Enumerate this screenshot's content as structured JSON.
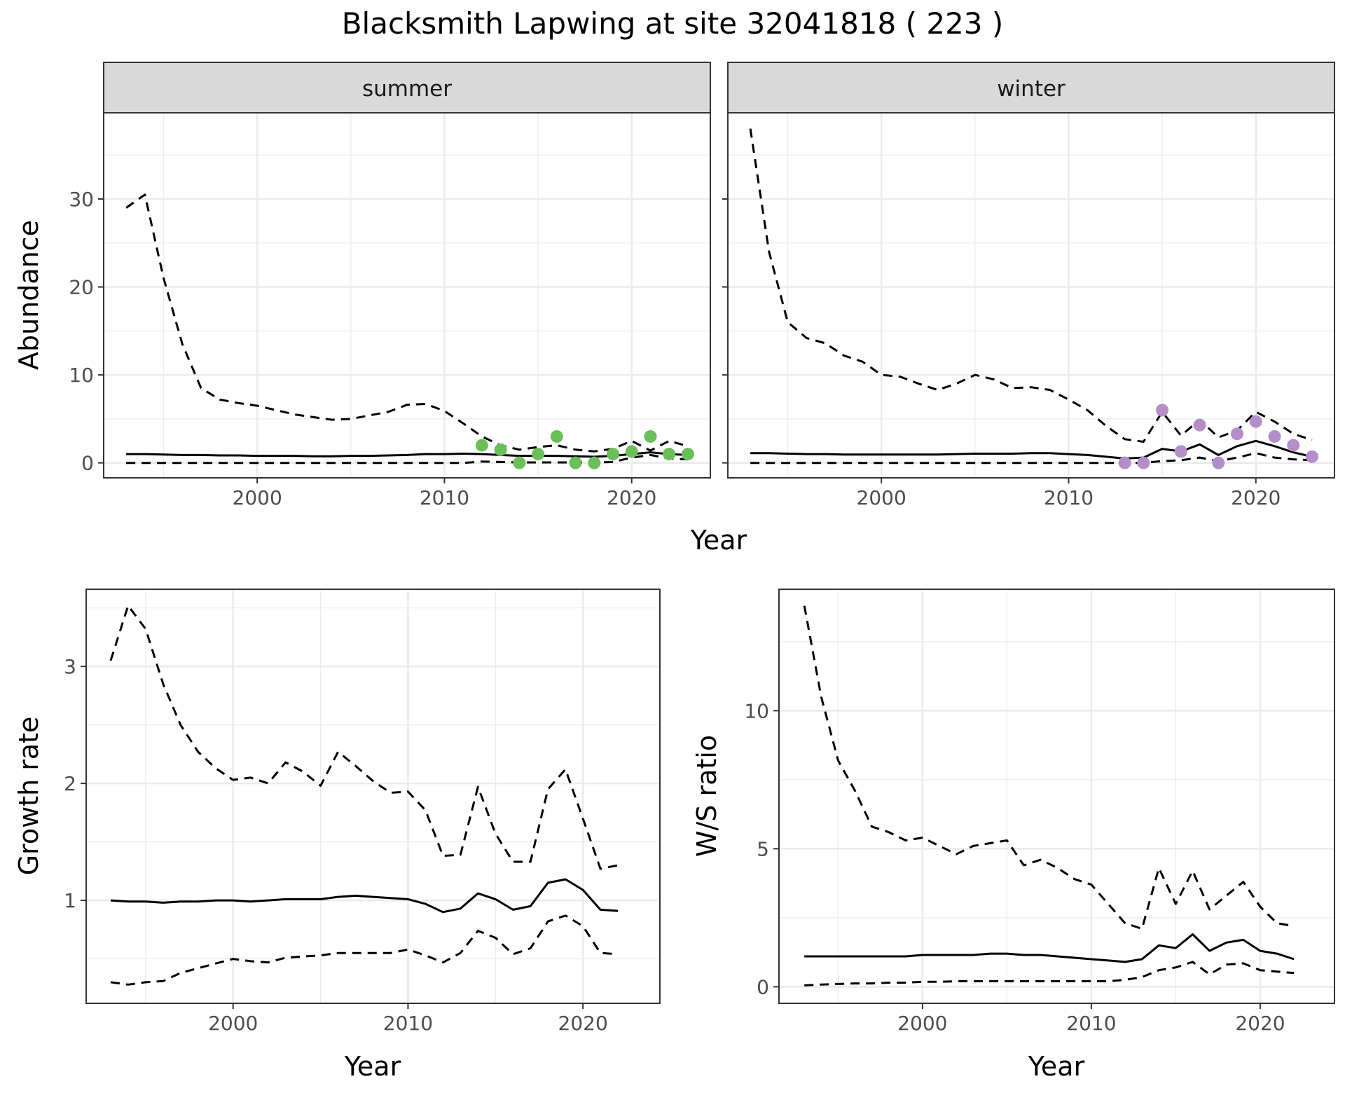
{
  "figure": {
    "title": "Blacksmith Lapwing at site 32041818 ( 223 )"
  },
  "colors": {
    "summer_points": "#6abf58",
    "winter_points": "#b48ec8",
    "line": "#000000",
    "grid": "#ebebeb",
    "strip_fill": "#d9d9d9",
    "panel_border": "#333333"
  },
  "chart_data": [
    {
      "type": "line",
      "facet": "summer",
      "strip_label": "summer",
      "xlabel": "Year",
      "ylabel": "Abundance",
      "xlim": [
        1991.8,
        2024.2
      ],
      "ylim": [
        -1.7,
        39.8
      ],
      "x_ticks": [
        2000,
        2010,
        2020
      ],
      "x_tick_labels": [
        "2000",
        "2010",
        "2020"
      ],
      "y_ticks": [
        0,
        10,
        20,
        30
      ],
      "y_tick_labels": [
        "0",
        "10",
        "20",
        "30"
      ],
      "grid": true,
      "x": [
        1993,
        1994,
        1995,
        1996,
        1997,
        1998,
        1999,
        2000,
        2001,
        2002,
        2003,
        2004,
        2005,
        2006,
        2007,
        2008,
        2009,
        2010,
        2011,
        2012,
        2013,
        2014,
        2015,
        2016,
        2017,
        2018,
        2019,
        2020,
        2021,
        2022,
        2023
      ],
      "series": [
        {
          "name": "",
          "style": "solid",
          "values": [
            1.0,
            1.0,
            0.95,
            0.9,
            0.9,
            0.85,
            0.85,
            0.8,
            0.8,
            0.8,
            0.75,
            0.75,
            0.8,
            0.8,
            0.85,
            0.9,
            1.0,
            1.0,
            1.05,
            1.0,
            0.9,
            0.8,
            0.8,
            0.8,
            0.75,
            0.7,
            0.8,
            1.0,
            1.2,
            1.0,
            0.9
          ]
        },
        {
          "name": "",
          "style": "dashed",
          "values": [
            29,
            30.5,
            21,
            13.5,
            8.5,
            7.2,
            6.8,
            6.5,
            6.0,
            5.5,
            5.2,
            4.9,
            5.0,
            5.4,
            5.8,
            6.6,
            6.7,
            5.9,
            4.5,
            3.0,
            2.0,
            1.5,
            1.8,
            2.0,
            1.5,
            1.3,
            1.6,
            2.5,
            1.4,
            2.5,
            1.9
          ]
        },
        {
          "name": "",
          "style": "dashed",
          "values": [
            0,
            0,
            0,
            0,
            0,
            0,
            0,
            0,
            0,
            0,
            0,
            0,
            0,
            0,
            0,
            0,
            0,
            0,
            0,
            0.15,
            0.1,
            0.05,
            0.05,
            0.05,
            0.05,
            0.05,
            0.1,
            0.6,
            0.9,
            0.5,
            0.4
          ]
        }
      ],
      "points": {
        "x": [
          2012,
          2013,
          2014,
          2015,
          2016,
          2017,
          2018,
          2019,
          2020,
          2021,
          2022,
          2023
        ],
        "y": [
          2,
          1.5,
          0,
          1,
          3,
          0,
          0,
          1,
          1.3,
          3,
          1,
          1
        ]
      }
    },
    {
      "type": "line",
      "facet": "winter",
      "strip_label": "winter",
      "xlabel": "Year",
      "ylabel": "Abundance",
      "xlim": [
        1991.8,
        2024.2
      ],
      "ylim": [
        -1.7,
        39.8
      ],
      "x_ticks": [
        2000,
        2010,
        2020
      ],
      "x_tick_labels": [
        "2000",
        "2010",
        "2020"
      ],
      "y_ticks": [
        0,
        10,
        20,
        30
      ],
      "grid": true,
      "x": [
        1993,
        1994,
        1995,
        1996,
        1997,
        1998,
        1999,
        2000,
        2001,
        2002,
        2003,
        2004,
        2005,
        2006,
        2007,
        2008,
        2009,
        2010,
        2011,
        2012,
        2013,
        2014,
        2015,
        2016,
        2017,
        2018,
        2019,
        2020,
        2021,
        2022,
        2023
      ],
      "series": [
        {
          "name": "",
          "style": "solid",
          "values": [
            1.1,
            1.1,
            1.05,
            1.0,
            1.0,
            0.95,
            0.95,
            0.95,
            0.95,
            0.95,
            0.95,
            1.0,
            1.05,
            1.05,
            1.05,
            1.1,
            1.1,
            1.0,
            0.9,
            0.7,
            0.5,
            0.6,
            1.6,
            1.3,
            2.1,
            0.9,
            1.9,
            2.5,
            1.9,
            1.2,
            0.7
          ]
        },
        {
          "name": "",
          "style": "dashed",
          "values": [
            38,
            24,
            16,
            14.2,
            13.6,
            12.2,
            11.5,
            10.0,
            9.8,
            9.0,
            8.3,
            9.0,
            10.0,
            9.5,
            8.5,
            8.6,
            8.3,
            7.2,
            6.0,
            4.2,
            2.7,
            2.4,
            5.8,
            3.1,
            4.9,
            2.9,
            3.7,
            5.8,
            4.7,
            3.3,
            2.6
          ]
        },
        {
          "name": "",
          "style": "dashed",
          "values": [
            0,
            0,
            0,
            0,
            0,
            0,
            0,
            0,
            0,
            0,
            0,
            0,
            0,
            0,
            0,
            0,
            0,
            0,
            0,
            0,
            0,
            0,
            0.2,
            0.3,
            0.6,
            0.2,
            0.6,
            1.1,
            0.6,
            0.4,
            0.3
          ]
        }
      ],
      "points": {
        "x": [
          2013,
          2014,
          2015,
          2016,
          2017,
          2018,
          2019,
          2020,
          2021,
          2022,
          2023
        ],
        "y": [
          0,
          0,
          6,
          1.3,
          4.3,
          0,
          3.3,
          4.7,
          3.0,
          2.0,
          0.7
        ]
      }
    },
    {
      "type": "line",
      "facet": "growth",
      "xlabel": "Year",
      "ylabel": "Growth rate",
      "xlim": [
        1991.6,
        2024.4
      ],
      "ylim": [
        0.12,
        3.66
      ],
      "x_ticks": [
        2000,
        2010,
        2020
      ],
      "x_tick_labels": [
        "2000",
        "2010",
        "2020"
      ],
      "y_ticks": [
        1,
        2,
        3
      ],
      "y_tick_labels": [
        "1",
        "2",
        "3"
      ],
      "grid": true,
      "x": [
        1993,
        1994,
        1995,
        1996,
        1997,
        1998,
        1999,
        2000,
        2001,
        2002,
        2003,
        2004,
        2005,
        2006,
        2007,
        2008,
        2009,
        2010,
        2011,
        2012,
        2013,
        2014,
        2015,
        2016,
        2017,
        2018,
        2019,
        2020,
        2021,
        2022
      ],
      "series": [
        {
          "name": "",
          "style": "solid",
          "values": [
            1.0,
            0.99,
            0.99,
            0.98,
            0.99,
            0.99,
            1.0,
            1.0,
            0.99,
            1.0,
            1.01,
            1.01,
            1.01,
            1.03,
            1.04,
            1.03,
            1.02,
            1.01,
            0.97,
            0.9,
            0.93,
            1.06,
            1.01,
            0.92,
            0.95,
            1.15,
            1.18,
            1.09,
            0.92,
            0.91
          ]
        },
        {
          "name": "",
          "style": "dashed",
          "values": [
            3.05,
            3.52,
            3.32,
            2.85,
            2.5,
            2.27,
            2.13,
            2.03,
            2.05,
            2.0,
            2.18,
            2.1,
            1.98,
            2.27,
            2.15,
            2.02,
            1.92,
            1.93,
            1.77,
            1.38,
            1.39,
            1.97,
            1.57,
            1.33,
            1.33,
            1.95,
            2.12,
            1.7,
            1.27,
            1.3
          ]
        },
        {
          "name": "",
          "style": "dashed",
          "values": [
            0.3,
            0.28,
            0.3,
            0.31,
            0.38,
            0.42,
            0.46,
            0.5,
            0.48,
            0.47,
            0.51,
            0.52,
            0.53,
            0.55,
            0.55,
            0.55,
            0.55,
            0.58,
            0.53,
            0.47,
            0.55,
            0.74,
            0.68,
            0.54,
            0.59,
            0.82,
            0.87,
            0.78,
            0.55,
            0.54
          ]
        }
      ]
    },
    {
      "type": "line",
      "facet": "ratio",
      "xlabel": "Year",
      "ylabel": "W/S ratio",
      "xlim": [
        1991.5,
        2024.4
      ],
      "ylim": [
        -0.6,
        14.4
      ],
      "x_ticks": [
        2000,
        2010,
        2020
      ],
      "x_tick_labels": [
        "2000",
        "2010",
        "2020"
      ],
      "y_ticks": [
        0,
        5,
        10
      ],
      "y_tick_labels": [
        "0",
        "5",
        "10"
      ],
      "grid": true,
      "x": [
        1993,
        1994,
        1995,
        1996,
        1997,
        1998,
        1999,
        2000,
        2001,
        2002,
        2003,
        2004,
        2005,
        2006,
        2007,
        2008,
        2009,
        2010,
        2011,
        2012,
        2013,
        2014,
        2015,
        2016,
        2017,
        2018,
        2019,
        2020,
        2021,
        2022
      ],
      "series": [
        {
          "name": "",
          "style": "solid",
          "values": [
            1.1,
            1.1,
            1.1,
            1.1,
            1.1,
            1.1,
            1.1,
            1.15,
            1.15,
            1.15,
            1.15,
            1.2,
            1.2,
            1.15,
            1.15,
            1.1,
            1.05,
            1.0,
            0.95,
            0.9,
            1.0,
            1.5,
            1.4,
            1.9,
            1.3,
            1.6,
            1.7,
            1.3,
            1.2,
            1.0
          ]
        },
        {
          "name": "",
          "style": "dashed",
          "values": [
            13.8,
            10.5,
            8.2,
            7.1,
            5.8,
            5.6,
            5.3,
            5.4,
            5.1,
            4.8,
            5.1,
            5.2,
            5.3,
            4.4,
            4.6,
            4.3,
            3.9,
            3.7,
            3.0,
            2.3,
            2.1,
            4.3,
            3.0,
            4.2,
            2.8,
            3.3,
            3.8,
            2.9,
            2.3,
            2.2
          ]
        },
        {
          "name": "",
          "style": "dashed",
          "values": [
            0.05,
            0.08,
            0.1,
            0.12,
            0.12,
            0.15,
            0.15,
            0.18,
            0.18,
            0.2,
            0.2,
            0.2,
            0.2,
            0.2,
            0.2,
            0.2,
            0.2,
            0.2,
            0.2,
            0.25,
            0.35,
            0.6,
            0.7,
            0.9,
            0.45,
            0.8,
            0.85,
            0.6,
            0.55,
            0.5
          ]
        }
      ]
    }
  ]
}
